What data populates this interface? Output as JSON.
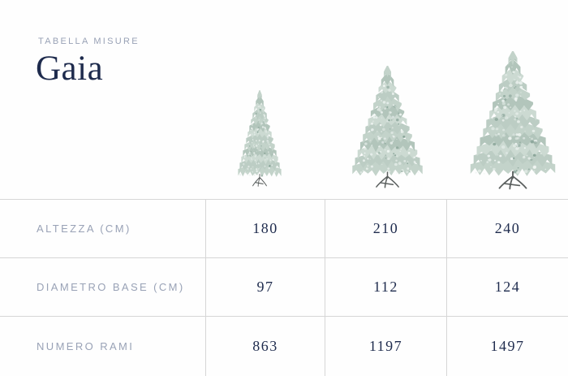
{
  "header": {
    "eyebrow": "TABELLA MISURE",
    "title": "Gaia"
  },
  "trees": {
    "icon": "flocked-christmas-tree-image",
    "count": 3,
    "note_sizes_cm": [
      "180",
      "210",
      "240"
    ]
  },
  "table": {
    "rows": [
      {
        "label": "ALTEZZA (CM)",
        "values": [
          "180",
          "210",
          "240"
        ]
      },
      {
        "label": "DIAMETRO BASE (CM)",
        "values": [
          "97",
          "112",
          "124"
        ]
      },
      {
        "label": "NUMERO RAMI",
        "values": [
          "863",
          "1197",
          "1497"
        ]
      }
    ]
  },
  "colors": {
    "title": "#1e2b4d",
    "value": "#1e2b4d",
    "label": "#99a2b6",
    "grid": "#d6d6d6",
    "background": "#fefefe",
    "tree_foliage": "#c3d3ca",
    "tree_flock": "#f2f7f4",
    "tree_stand": "#5a5f5e"
  }
}
